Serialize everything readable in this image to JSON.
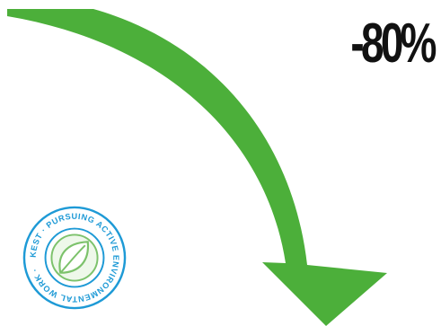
{
  "headline": {
    "text": "-80%",
    "color": "#111111"
  },
  "arrow": {
    "icon": "curved-down-arrow-icon",
    "color": "#4caf3a"
  },
  "badge": {
    "icon": "leaf-icon",
    "ring_text": "KEST · PURSUING ACTIVE ENVIRONMENTAL WORK ·",
    "ring_color": "#1e9ad6",
    "leaf_color": "#7cc26b"
  }
}
